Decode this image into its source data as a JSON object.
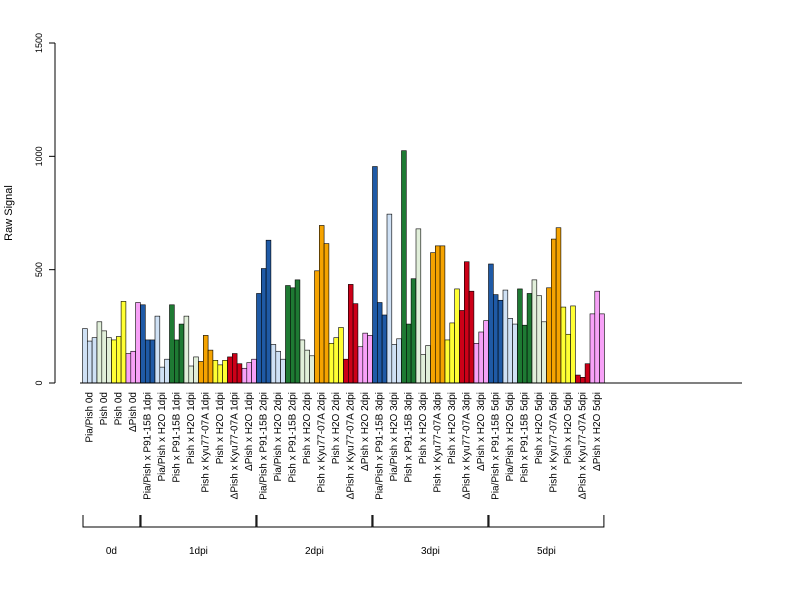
{
  "chart_data": {
    "type": "bar",
    "title": "",
    "xlabel": "",
    "ylabel": "Raw Signal",
    "ylim": [
      0,
      1500
    ],
    "yticks": [
      0,
      500,
      1000,
      1500
    ],
    "grid": false,
    "legend": "none",
    "categories": [
      "Pia/Pish 0d",
      "Pish 0d",
      "Pish 0d",
      "ΔPish 0d",
      "Pia/Pish x P91-15B 1dpi",
      "Pia/Pish x H2O 1dpi",
      "Pish x P91-15B 1dpi",
      "Pish x H2O 1dpi",
      "Pish x Kyu77-07A 1dpi",
      "Pish x H2O 1dpi",
      "ΔPish x Kyu77-07A 1dpi",
      "ΔPish x H2O 1dpi",
      "Pia/Pish x P91-15B 2dpi",
      "Pia/Pish x H2O 2dpi",
      "Pish x P91-15B 2dpi",
      "Pish x H2O 2dpi",
      "Pish x Kyu77-07A 2dpi",
      "Pish x H2O 2dpi",
      "ΔPish x Kyu77-07A 2dpi",
      "ΔPish x H2O 2dpi",
      "Pia/Pish x P91-15B 3dpi",
      "Pia/Pish x H2O 3dpi",
      "Pish x P91-15B 3dpi",
      "Pish x H2O 3dpi",
      "Pish x Kyu77-07A 3dpi",
      "Pish x H2O 3dpi",
      "ΔPish x Kyu77-07A 3dpi",
      "ΔPish x H2O 3dpi",
      "Pia/Pish x P91-15B 5dpi",
      "Pia/Pish x H2O 5dpi",
      "Pish x P91-15B 5dpi",
      "Pish x H2O 5dpi",
      "Pish x Kyu77-07A 5dpi",
      "Pish x H2O 5dpi",
      "ΔPish x Kyu77-07A 5dpi",
      "ΔPish x H2O 5dpi"
    ],
    "colors": [
      "#cfe1f5",
      "#e1efda",
      "#ffff33",
      "#f7a1f7",
      "#1f5aa6",
      "#cfe1f5",
      "#1e7a33",
      "#e1efda",
      "#f5a300",
      "#ffff33",
      "#cc0018",
      "#f7a1f7",
      "#1f5aa6",
      "#cfe1f5",
      "#1e7a33",
      "#e1efda",
      "#f5a300",
      "#ffff33",
      "#cc0018",
      "#f7a1f7",
      "#1f5aa6",
      "#cfe1f5",
      "#1e7a33",
      "#e1efda",
      "#f5a300",
      "#ffff33",
      "#cc0018",
      "#f7a1f7",
      "#1f5aa6",
      "#cfe1f5",
      "#1e7a33",
      "#e1efda",
      "#f5a300",
      "#ffff33",
      "#cc0018",
      "#f7a1f7"
    ],
    "values": [
      [
        240,
        185,
        200
      ],
      [
        270,
        230,
        200
      ],
      [
        190,
        205,
        360
      ],
      [
        130,
        140,
        355
      ],
      [
        345,
        190,
        190
      ],
      [
        295,
        70,
        105
      ],
      [
        345,
        190,
        260
      ],
      [
        295,
        75,
        115
      ],
      [
        95,
        210,
        145
      ],
      [
        100,
        80,
        100
      ],
      [
        115,
        130,
        85
      ],
      [
        65,
        90,
        105
      ],
      [
        395,
        505,
        630
      ],
      [
        170,
        140,
        105
      ],
      [
        430,
        420,
        455
      ],
      [
        190,
        145,
        120
      ],
      [
        495,
        695,
        615
      ],
      [
        175,
        200,
        245
      ],
      [
        105,
        435,
        350
      ],
      [
        160,
        220,
        210
      ],
      [
        955,
        355,
        300
      ],
      [
        745,
        170,
        195
      ],
      [
        1025,
        260,
        460
      ],
      [
        680,
        125,
        165
      ],
      [
        575,
        605,
        605
      ],
      [
        190,
        265,
        415
      ],
      [
        320,
        535,
        405
      ],
      [
        175,
        225,
        275
      ],
      [
        525,
        390,
        365
      ],
      [
        410,
        285,
        260
      ],
      [
        415,
        255,
        395
      ],
      [
        455,
        385,
        270
      ],
      [
        420,
        635,
        685
      ],
      [
        335,
        215,
        340
      ],
      [
        35,
        25,
        85
      ],
      [
        305,
        405,
        305
      ]
    ],
    "groups": [
      {
        "label": "0d",
        "start": 0,
        "end": 3
      },
      {
        "label": "1dpi",
        "start": 4,
        "end": 11
      },
      {
        "label": "2dpi",
        "start": 12,
        "end": 19
      },
      {
        "label": "3dpi",
        "start": 20,
        "end": 27
      },
      {
        "label": "5dpi",
        "start": 28,
        "end": 35
      }
    ]
  }
}
